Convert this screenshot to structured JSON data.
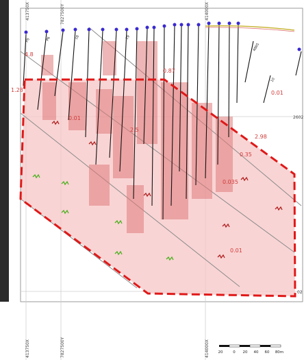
{
  "grid": {
    "top_labels": [
      "413750X",
      "7827500Y",
      "414000X"
    ],
    "bottom_labels": [
      "413750X",
      "7827500Y",
      "414000X"
    ],
    "right_labels": [
      "2602",
      "02"
    ]
  },
  "drillholes": {
    "collar_labels": [
      "P5",
      "P6",
      "18",
      "19",
      "4865",
      "10"
    ],
    "grade_values": [
      "4.8",
      "1.28",
      "0.87",
      "0.01",
      "2.98",
      "2.5",
      "0.35",
      "0.01",
      "0.035",
      "0.01"
    ]
  },
  "scale_bar": {
    "labels": [
      "20",
      "0",
      "20",
      "40",
      "60",
      "80m"
    ]
  },
  "colors": {
    "outline": "#e01818",
    "fill": "#f7c6c6",
    "collar": "#3a2ad0",
    "annotation": "#d23a3a",
    "vein_green": "#4ab01e",
    "vein_red": "#b01e1e",
    "grid": "#cccccc"
  }
}
